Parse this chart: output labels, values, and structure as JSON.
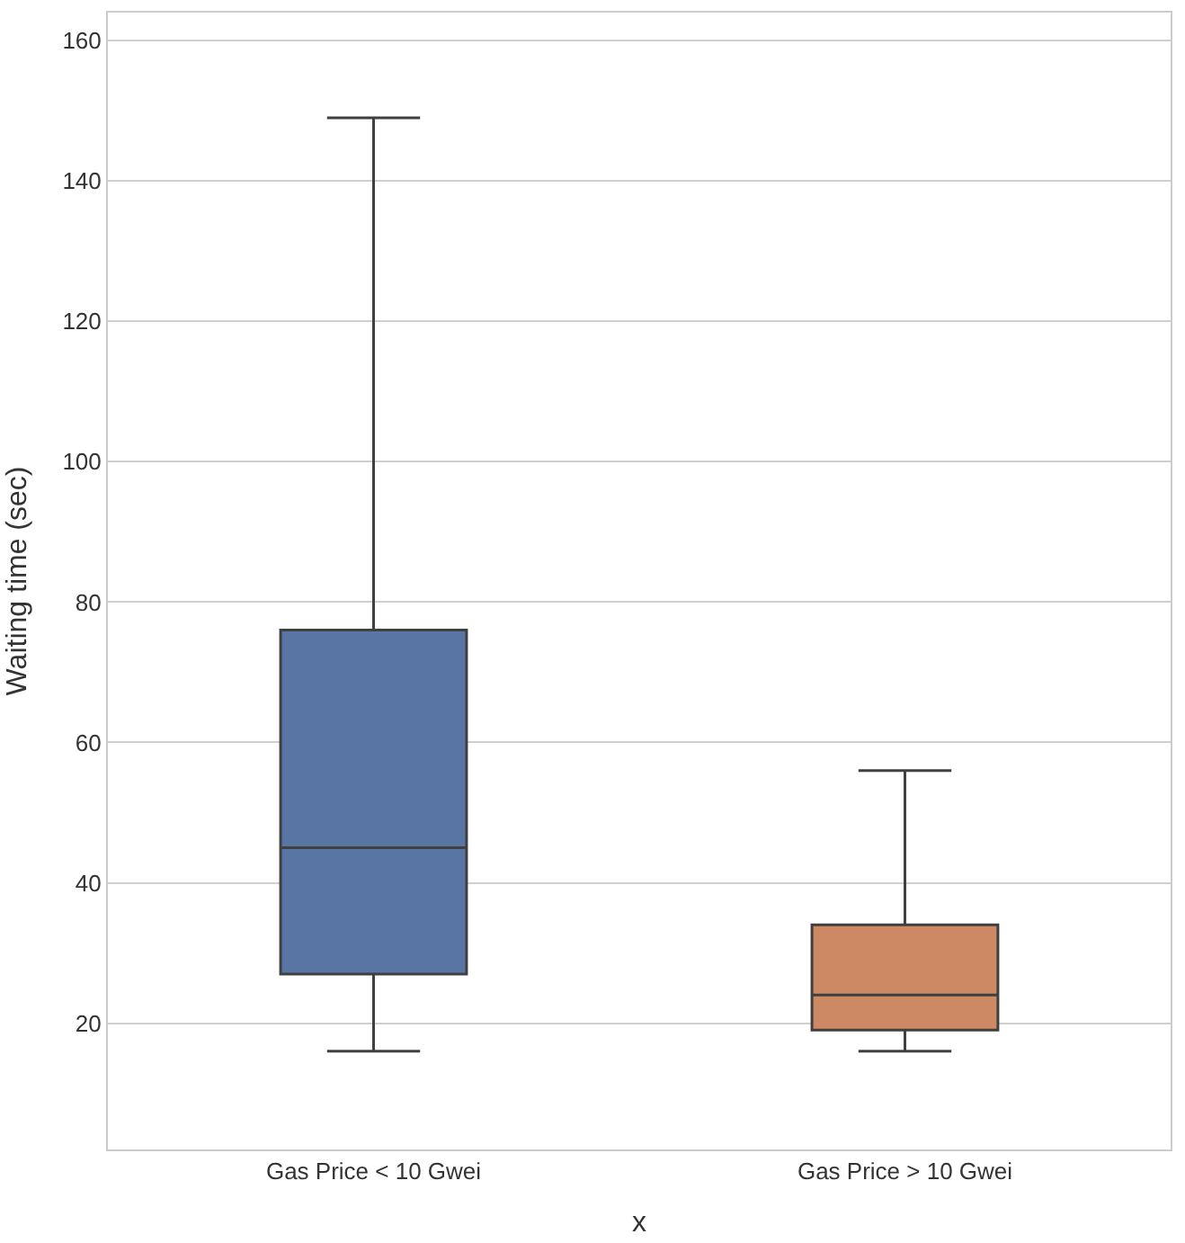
{
  "chart_data": {
    "type": "box",
    "xlabel": "x",
    "ylabel": "Waiting time (sec)",
    "categories": [
      "Gas Price < 10 Gwei",
      "Gas Price > 10 Gwei"
    ],
    "colors": [
      "#5975a4",
      "#cc8963"
    ],
    "boxes": [
      {
        "low": 16,
        "q1": 27,
        "median": 45,
        "q3": 76,
        "high": 149
      },
      {
        "low": 16,
        "q1": 19,
        "median": 24,
        "q3": 34,
        "high": 56
      }
    ],
    "ylim": [
      2,
      164
    ],
    "yticks": [
      20,
      40,
      60,
      80,
      100,
      120,
      140,
      160
    ],
    "grid": "y",
    "legend": false
  }
}
